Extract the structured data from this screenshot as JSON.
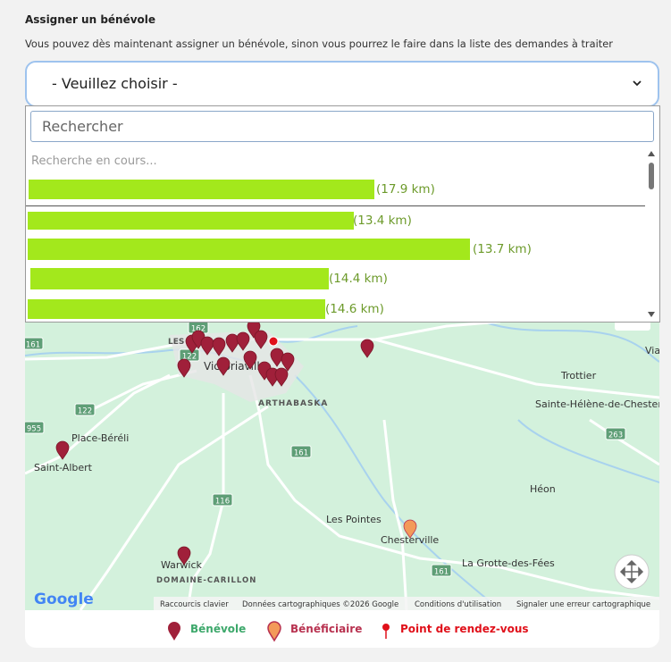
{
  "header": {
    "title": "Assigner un bénévole",
    "subtitle": "Vous pouvez dès maintenant assigner un bénévole, sinon vous pourrez le faire dans la liste des demandes à traiter"
  },
  "select": {
    "placeholder": "- Veuillez choisir -",
    "search_placeholder": "Rechercher",
    "status": "Recherche en cours...",
    "options": [
      {
        "distance": "(17.9 km)"
      },
      {
        "distance": "(13.4 km)"
      },
      {
        "distance": "(13.7 km)"
      },
      {
        "distance": "(14.4 km)"
      },
      {
        "distance": "(14.6 km)"
      }
    ]
  },
  "map": {
    "labels": [
      "LES",
      "Victoriaville",
      "ARTHABASKA",
      "Trottier",
      "Sainte-Hélène-de-Chester",
      "Via",
      "Place-Béréli",
      "Saint-Albert",
      "Héon",
      "Les Pointes",
      "Chesterville",
      "La Grotte-des-Fées",
      "Warwick",
      "DOMAINE-CARILLON"
    ],
    "road_numbers": [
      "161",
      "162",
      "122",
      "122",
      "955",
      "116",
      "161",
      "263",
      "161"
    ],
    "logo": "Google",
    "footer": [
      "Raccourcis clavier",
      "Données cartographiques ©2026 Google",
      "Conditions d'utilisation",
      "Signaler une erreur cartographique"
    ]
  },
  "legend": [
    "Bénévole",
    "Bénéficiaire",
    "Point de rendez-vous"
  ]
}
